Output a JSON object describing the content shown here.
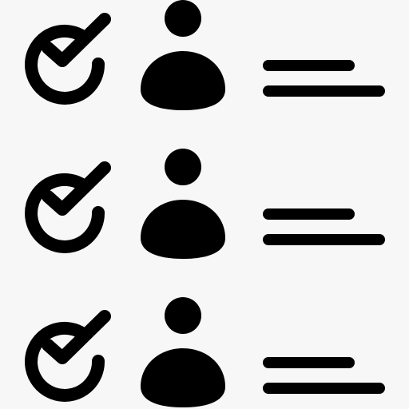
{
  "icon": "checklist-of-people-icon",
  "colors": {
    "background": "#f7f7f7",
    "foreground": "#000000"
  },
  "rows": [
    {
      "check_icon": "check-circle-icon",
      "person_icon": "person-icon",
      "text_icon": "text-lines-icon"
    },
    {
      "check_icon": "check-circle-icon",
      "person_icon": "person-icon",
      "text_icon": "text-lines-icon"
    },
    {
      "check_icon": "check-circle-icon",
      "person_icon": "person-icon",
      "text_icon": "text-lines-icon"
    }
  ]
}
